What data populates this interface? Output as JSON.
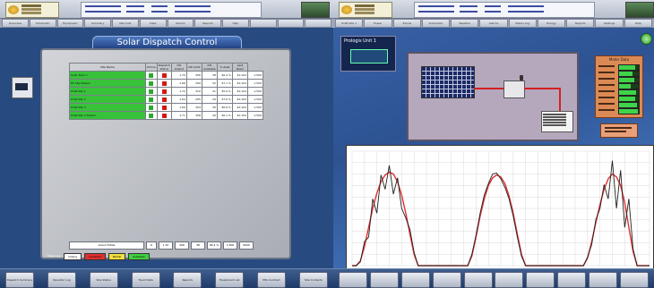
{
  "left": {
    "topbar": {
      "info_lines": 4
    },
    "tabs": [
      {
        "label": "Overview"
      },
      {
        "label": "Schematic"
      },
      {
        "label": "Equipment"
      },
      {
        "label": "Summary"
      },
      {
        "label": "Net Cost"
      },
      {
        "label": "Sites"
      },
      {
        "label": "Alarms"
      },
      {
        "label": "Reports"
      },
      {
        "label": "Help"
      },
      {
        "label": ""
      },
      {
        "label": ""
      },
      {
        "label": ""
      }
    ],
    "title": "Solar Dispatch Control",
    "table": {
      "headers": [
        "Site Name",
        "Online",
        "Dispatch Status",
        "kW Output",
        "kW Limit",
        "kW Available",
        "% Avail",
        "Last Read"
      ],
      "rows": [
        {
          "name": "Solar Farm 1",
          "vals": [
            "1.70",
            "306",
            "38",
            "96.4 %",
            "42:104",
            "1,500"
          ],
          "status": "#d01818"
        },
        {
          "name": "PV Site Station",
          "vals": [
            "1.66",
            "299",
            "32",
            "97.1 %",
            "42:104",
            "1,500"
          ],
          "status": "#d01818"
        },
        {
          "name": "Pratt Site 1",
          "vals": [
            "1.72",
            "310",
            "41",
            "95.9 %",
            "42:104",
            "1,500"
          ],
          "status": "#d01818"
        },
        {
          "name": "Pratt Site 2",
          "vals": [
            "1.64",
            "295",
            "29",
            "97.6 %",
            "42:104",
            "1,500"
          ],
          "status": "#d01818"
        },
        {
          "name": "Pratt Site 3",
          "vals": [
            "1.69",
            "304",
            "36",
            "96.8 %",
            "42:104",
            "1,500"
          ],
          "status": "#d01818"
        },
        {
          "name": "Pratt Site 4 Station",
          "vals": [
            "1.71",
            "308",
            "40",
            "96.1 %",
            "42:104",
            "1,500"
          ],
          "status": "#d01818"
        }
      ],
      "online_color": "#2ea82e",
      "name_color": "#37c23a"
    },
    "totals": {
      "label": "Grand Totals",
      "count": "6",
      "kw": "1.70",
      "a": "306",
      "b": "38",
      "pct": "96.4 %",
      "last": "1,500",
      "x": "9000"
    },
    "legend": [
      {
        "label": "Online",
        "color": "#ffffff"
      },
      {
        "label": "Curtailed",
        "color": "#e03030"
      },
      {
        "label": "Partial",
        "color": "#f0e040"
      },
      {
        "label": "Available",
        "color": "#40d040"
      }
    ],
    "legend_title": "Meanings:",
    "bottom_buttons": [
      "Dispatch Summary",
      "Operator Log",
      "Site Status",
      "Trend Data",
      "Reports",
      "Equipment List",
      "PPA Contract",
      "Site Contacts"
    ]
  },
  "right": {
    "tabs": [
      {
        "label": "Pratt Site 1"
      },
      {
        "label": "Power"
      },
      {
        "label": "Trends"
      },
      {
        "label": "Schematic"
      },
      {
        "label": "Weather"
      },
      {
        "label": "Alarms"
      },
      {
        "label": "Status Log"
      },
      {
        "label": "Energy"
      },
      {
        "label": "Reports"
      },
      {
        "label": "Settings"
      },
      {
        "label": "Help"
      }
    ],
    "site_header": "Prologis Unit 1",
    "status": {
      "title": "Meter Data",
      "rows": [
        {
          "label": "kW Out",
          "fill": 0.8
        },
        {
          "label": "Voltage",
          "fill": 0.7
        },
        {
          "label": "Current",
          "fill": 0.75
        },
        {
          "label": "kVAr",
          "fill": 0.6
        },
        {
          "label": "Avg Voltage",
          "fill": 0.85
        },
        {
          "label": "Avg Current",
          "fill": 0.8
        },
        {
          "label": "Freq",
          "fill": 0.9
        },
        {
          "label": "PF",
          "fill": 0.95
        }
      ]
    },
    "chart_data": {
      "type": "line",
      "title": "",
      "xlabel": "",
      "ylabel": "",
      "x": [
        0,
        1,
        2,
        3,
        4,
        5,
        6,
        7,
        8,
        9,
        10,
        11,
        12,
        13,
        14,
        15,
        16,
        17,
        18,
        19,
        20,
        21,
        22,
        23,
        24,
        25,
        26,
        27,
        28,
        29,
        30,
        31,
        32,
        33,
        34,
        35,
        36,
        37,
        38,
        39,
        40,
        41,
        42,
        43,
        44,
        45,
        46,
        47,
        48,
        49,
        50,
        51,
        52,
        53,
        54,
        55,
        56,
        57,
        58,
        59,
        60,
        61,
        62,
        63,
        64,
        65,
        66,
        67,
        68,
        69,
        70,
        71,
        72
      ],
      "series": [
        {
          "color": "#e03030",
          "values": [
            0,
            0,
            5,
            20,
            40,
            60,
            76,
            88,
            95,
            98,
            96,
            88,
            74,
            55,
            33,
            12,
            0,
            0,
            0,
            0,
            0,
            0,
            0,
            0,
            0,
            0,
            0,
            0,
            0,
            10,
            30,
            52,
            70,
            84,
            92,
            95,
            93,
            86,
            73,
            55,
            33,
            12,
            0,
            0,
            0,
            0,
            0,
            0,
            0,
            0,
            0,
            0,
            0,
            0,
            0,
            0,
            0,
            8,
            25,
            45,
            64,
            80,
            91,
            96,
            93,
            84,
            66,
            40,
            15,
            0,
            0,
            0,
            0
          ]
        },
        {
          "color": "#202020",
          "values": [
            0,
            0,
            4,
            25,
            30,
            70,
            55,
            95,
            80,
            105,
            75,
            92,
            60,
            50,
            38,
            14,
            0,
            0,
            0,
            0,
            0,
            0,
            0,
            0,
            0,
            0,
            0,
            0,
            0,
            12,
            32,
            55,
            74,
            86,
            96,
            97,
            91,
            82,
            70,
            52,
            30,
            10,
            0,
            0,
            0,
            0,
            0,
            0,
            0,
            0,
            0,
            0,
            0,
            0,
            0,
            0,
            0,
            9,
            22,
            48,
            60,
            85,
            70,
            110,
            60,
            100,
            40,
            70,
            18,
            0,
            0,
            0,
            0
          ]
        }
      ],
      "ylim": [
        0,
        120
      ],
      "grid": true
    }
  }
}
